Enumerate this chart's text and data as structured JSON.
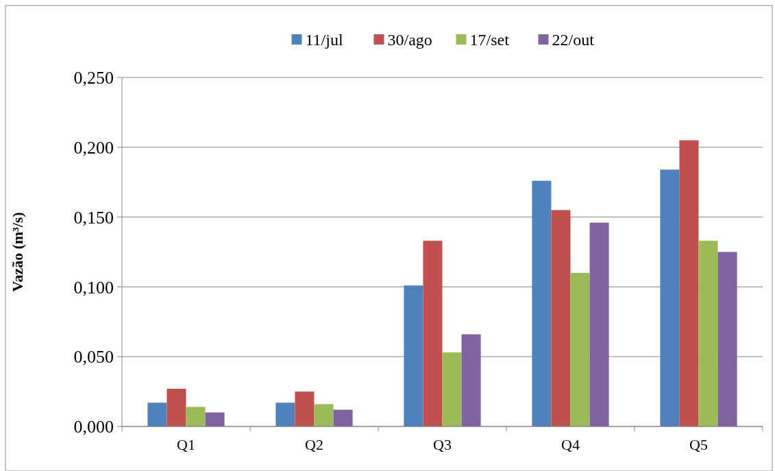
{
  "chart_data": {
    "type": "bar",
    "ylabel": "Vazão (m³/s)",
    "categories": [
      "Q1",
      "Q2",
      "Q3",
      "Q4",
      "Q5"
    ],
    "series": [
      {
        "name": "11/jul",
        "color": "#4f81bd",
        "values": [
          0.017,
          0.017,
          0.101,
          0.176,
          0.184
        ]
      },
      {
        "name": "30/ago",
        "color": "#c0504d",
        "values": [
          0.027,
          0.025,
          0.133,
          0.155,
          0.205
        ]
      },
      {
        "name": "17/set",
        "color": "#9bbb59",
        "values": [
          0.014,
          0.016,
          0.053,
          0.11,
          0.133
        ]
      },
      {
        "name": "22/out",
        "color": "#8064a2",
        "values": [
          0.01,
          0.012,
          0.066,
          0.146,
          0.125
        ]
      }
    ],
    "ylim": [
      0,
      0.25
    ],
    "yticks": [
      {
        "value": 0,
        "label": "0,000"
      },
      {
        "value": 0.05,
        "label": "0,050"
      },
      {
        "value": 0.1,
        "label": "0,100"
      },
      {
        "value": 0.15,
        "label": "0,150"
      },
      {
        "value": 0.2,
        "label": "0,200"
      },
      {
        "value": 0.25,
        "label": "0,250"
      }
    ],
    "grid": "y",
    "legend": "top"
  }
}
